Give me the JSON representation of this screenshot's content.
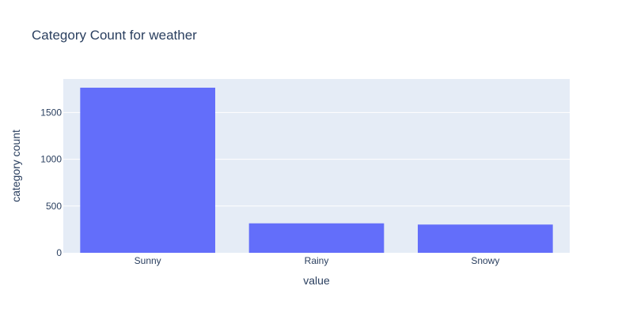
{
  "chart_data": {
    "type": "bar",
    "title": "Category Count for weather",
    "xlabel": "value",
    "ylabel": "category count",
    "categories": [
      "Sunny",
      "Rainy",
      "Snowy"
    ],
    "values": [
      1765,
      315,
      302
    ],
    "ylim": [
      0,
      1858
    ],
    "yticks": [
      0,
      500,
      1000,
      1500
    ],
    "grid": true,
    "colors": {
      "bar": "#636efa",
      "plot_bg": "#e5ecf6",
      "grid": "#ffffff",
      "text": "#2a3f5f"
    }
  }
}
